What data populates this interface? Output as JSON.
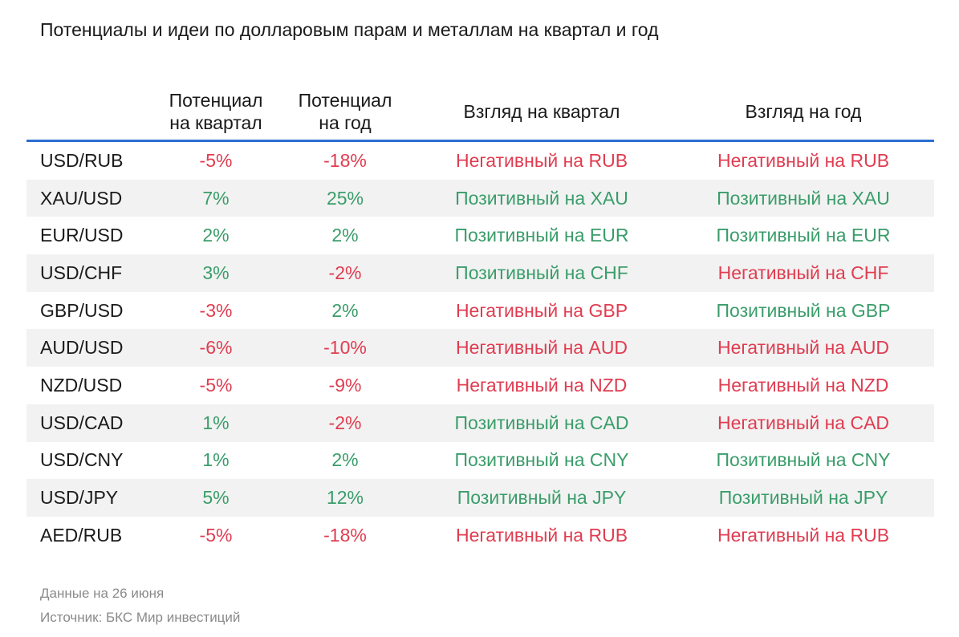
{
  "title": "Потенциалы и идеи по долларовым парам и металлам на квартал и год",
  "columns": {
    "pot_quarter_l1": "Потенциал",
    "pot_quarter_l2": "на квартал",
    "pot_year_l1": "Потенциал",
    "pot_year_l2": "на год",
    "view_quarter": "Взгляд на квартал",
    "view_year": "Взгляд на год"
  },
  "rows": [
    {
      "pair": "USD/RUB",
      "q": "-5%",
      "y": "-18%",
      "vq": "Негативный на RUB",
      "vy": "Негативный на RUB"
    },
    {
      "pair": "XAU/USD",
      "q": "7%",
      "y": "25%",
      "vq": "Позитивный на XAU",
      "vy": "Позитивный на XAU"
    },
    {
      "pair": "EUR/USD",
      "q": "2%",
      "y": "2%",
      "vq": "Позитивный на EUR",
      "vy": "Позитивный на EUR"
    },
    {
      "pair": "USD/CHF",
      "q": "3%",
      "y": "-2%",
      "vq": "Позитивный на CHF",
      "vy": "Негативный на CHF"
    },
    {
      "pair": "GBP/USD",
      "q": "-3%",
      "y": "2%",
      "vq": "Негативный на GBP",
      "vy": "Позитивный на GBP"
    },
    {
      "pair": "AUD/USD",
      "q": "-6%",
      "y": "-10%",
      "vq": "Негативный на AUD",
      "vy": "Негативный на AUD"
    },
    {
      "pair": "NZD/USD",
      "q": "-5%",
      "y": "-9%",
      "vq": "Негативный на NZD",
      "vy": "Негативный на NZD"
    },
    {
      "pair": "USD/CAD",
      "q": "1%",
      "y": "-2%",
      "vq": "Позитивный на CAD",
      "vy": "Негативный на CAD"
    },
    {
      "pair": "USD/CNY",
      "q": "1%",
      "y": "2%",
      "vq": "Позитивный на CNY",
      "vy": "Позитивный на CNY"
    },
    {
      "pair": "USD/JPY",
      "q": "5%",
      "y": "12%",
      "vq": "Позитивный на JPY",
      "vy": "Позитивный на JPY"
    },
    {
      "pair": "AED/RUB",
      "q": "-5%",
      "y": "-18%",
      "vq": "Негативный на RUB",
      "vy": "Негативный на RUB"
    }
  ],
  "colors": {
    "negative": "#e03c50",
    "positive": "#3a9d6a",
    "header_rule": "#2a6fd1",
    "row_shade": "#f2f2f2"
  },
  "footer": {
    "date": "Данные на 26 июня",
    "source": "Источник: БКС Мир инвестиций"
  }
}
